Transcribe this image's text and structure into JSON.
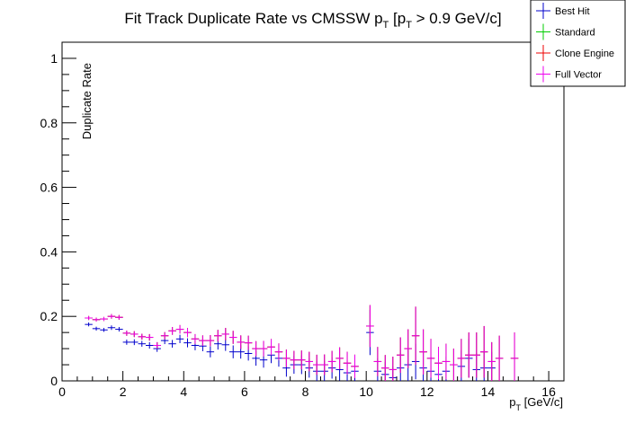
{
  "chart_data": {
    "type": "scatter",
    "title": "Fit Track Duplicate Rate vs CMSSW p",
    "title_sub1": "T",
    "title_mid": " [p",
    "title_sub2": "T",
    "title_tail": " > 0.9 GeV/c]",
    "xlabel": "p",
    "xlabel_sub": "T",
    "xlabel_unit": " [GeV/c]",
    "ylabel": "Duplicate Rate",
    "xlim": [
      0,
      16.5
    ],
    "ylim": [
      0,
      1.05
    ],
    "x_ticks": [
      "0",
      "2",
      "4",
      "6",
      "8",
      "10",
      "12",
      "14",
      "16"
    ],
    "y_ticks": [
      "0",
      "0.2",
      "0.4",
      "0.6",
      "0.8",
      "1"
    ],
    "legend_position": "top-right",
    "bin_width": 0.25,
    "series": [
      {
        "name": "Best Hit",
        "color": "#0000cc",
        "x": [
          0.875,
          1.125,
          1.375,
          1.625,
          1.875,
          2.125,
          2.375,
          2.625,
          2.875,
          3.125,
          3.375,
          3.625,
          3.875,
          4.125,
          4.375,
          4.625,
          4.875,
          5.125,
          5.375,
          5.625,
          5.875,
          6.125,
          6.375,
          6.625,
          6.875,
          7.125,
          7.375,
          7.625,
          7.875,
          8.125,
          8.375,
          8.625,
          8.875,
          9.125,
          9.375,
          9.625,
          10.125,
          10.375,
          10.625,
          10.875,
          11.125,
          11.375,
          11.625,
          11.875,
          12.125,
          12.375,
          12.625,
          13.125,
          13.375,
          13.625,
          13.875,
          14.125
        ],
        "y": [
          0.175,
          0.162,
          0.158,
          0.165,
          0.16,
          0.12,
          0.12,
          0.115,
          0.11,
          0.1,
          0.125,
          0.115,
          0.13,
          0.118,
          0.11,
          0.108,
          0.09,
          0.115,
          0.112,
          0.09,
          0.09,
          0.085,
          0.07,
          0.065,
          0.08,
          0.07,
          0.04,
          0.05,
          0.05,
          0.04,
          0.03,
          0.03,
          0.04,
          0.035,
          0.025,
          0.03,
          0.15,
          0.03,
          0.02,
          0.01,
          0.04,
          0.05,
          0.06,
          0.04,
          0.03,
          0.02,
          0.03,
          0.045,
          0.07,
          0.035,
          0.04,
          0.04
        ],
        "err": [
          0.006,
          0.006,
          0.006,
          0.007,
          0.007,
          0.008,
          0.009,
          0.009,
          0.01,
          0.01,
          0.011,
          0.012,
          0.013,
          0.014,
          0.015,
          0.016,
          0.017,
          0.018,
          0.019,
          0.02,
          0.021,
          0.022,
          0.023,
          0.024,
          0.025,
          0.026,
          0.027,
          0.028,
          0.029,
          0.03,
          0.031,
          0.032,
          0.033,
          0.034,
          0.035,
          0.036,
          0.07,
          0.04,
          0.038,
          0.035,
          0.045,
          0.05,
          0.055,
          0.05,
          0.045,
          0.04,
          0.045,
          0.05,
          0.06,
          0.05,
          0.05,
          0.05
        ]
      },
      {
        "name": "Standard",
        "color": "#00cc00",
        "x": [
          0.875,
          1.125,
          1.375,
          1.625,
          1.875,
          2.125,
          2.375,
          2.625,
          2.875,
          3.125,
          3.375,
          3.625,
          3.875,
          4.125,
          4.375,
          4.625,
          4.875,
          5.125,
          5.375,
          5.625,
          5.875,
          6.125,
          6.375,
          6.625,
          6.875,
          7.125,
          7.375,
          7.625,
          7.875,
          8.125,
          8.375,
          8.625,
          8.875,
          9.125,
          9.375,
          9.625,
          10.125,
          10.375,
          10.625,
          10.875,
          11.125,
          11.375,
          11.625,
          11.875,
          12.125,
          12.375,
          12.625,
          12.875,
          13.125,
          13.375,
          13.625,
          13.875,
          14.125,
          14.375,
          14.875
        ],
        "y": [
          0.195,
          0.19,
          0.192,
          0.2,
          0.197,
          0.148,
          0.145,
          0.137,
          0.135,
          0.11,
          0.14,
          0.155,
          0.16,
          0.15,
          0.13,
          0.125,
          0.125,
          0.14,
          0.145,
          0.135,
          0.12,
          0.118,
          0.1,
          0.1,
          0.105,
          0.09,
          0.07,
          0.065,
          0.065,
          0.06,
          0.05,
          0.05,
          0.06,
          0.07,
          0.055,
          0.045,
          0.17,
          0.06,
          0.04,
          0.035,
          0.08,
          0.1,
          0.14,
          0.09,
          0.07,
          0.055,
          0.06,
          0.05,
          0.07,
          0.08,
          0.08,
          0.09,
          0.06,
          0.07,
          0.07
        ],
        "err": [
          0.006,
          0.006,
          0.006,
          0.007,
          0.007,
          0.008,
          0.009,
          0.009,
          0.01,
          0.01,
          0.011,
          0.012,
          0.013,
          0.014,
          0.015,
          0.016,
          0.017,
          0.018,
          0.019,
          0.02,
          0.021,
          0.022,
          0.023,
          0.024,
          0.025,
          0.026,
          0.027,
          0.028,
          0.029,
          0.03,
          0.031,
          0.032,
          0.033,
          0.034,
          0.035,
          0.036,
          0.065,
          0.045,
          0.04,
          0.04,
          0.055,
          0.06,
          0.09,
          0.07,
          0.06,
          0.05,
          0.055,
          0.05,
          0.06,
          0.07,
          0.07,
          0.08,
          0.06,
          0.07,
          0.08
        ]
      },
      {
        "name": "Clone Engine",
        "color": "#ee0000",
        "x": [
          0.875,
          1.125,
          1.375,
          1.625,
          1.875,
          2.125,
          2.375,
          2.625,
          2.875,
          3.125,
          3.375,
          3.625,
          3.875,
          4.125,
          4.375,
          4.625,
          4.875,
          5.125,
          5.375,
          5.625,
          5.875,
          6.125,
          6.375,
          6.625,
          6.875,
          7.125,
          7.375,
          7.625,
          7.875,
          8.125,
          8.375,
          8.625,
          8.875,
          9.125,
          9.375,
          9.625,
          10.125,
          10.375,
          10.625,
          10.875,
          11.125,
          11.375,
          11.625,
          11.875,
          12.125,
          12.375,
          12.625,
          12.875,
          13.125,
          13.375,
          13.625,
          13.875,
          14.125,
          14.375,
          14.875
        ],
        "y": [
          0.195,
          0.19,
          0.192,
          0.2,
          0.197,
          0.148,
          0.145,
          0.137,
          0.135,
          0.11,
          0.14,
          0.155,
          0.16,
          0.15,
          0.13,
          0.125,
          0.125,
          0.14,
          0.145,
          0.135,
          0.12,
          0.118,
          0.1,
          0.1,
          0.105,
          0.09,
          0.07,
          0.065,
          0.065,
          0.06,
          0.05,
          0.05,
          0.06,
          0.07,
          0.055,
          0.045,
          0.17,
          0.06,
          0.04,
          0.035,
          0.08,
          0.1,
          0.14,
          0.09,
          0.07,
          0.055,
          0.06,
          0.05,
          0.07,
          0.08,
          0.08,
          0.09,
          0.06,
          0.07,
          0.07
        ],
        "err": [
          0.006,
          0.006,
          0.006,
          0.007,
          0.007,
          0.008,
          0.009,
          0.009,
          0.01,
          0.01,
          0.011,
          0.012,
          0.013,
          0.014,
          0.015,
          0.016,
          0.017,
          0.018,
          0.019,
          0.02,
          0.021,
          0.022,
          0.023,
          0.024,
          0.025,
          0.026,
          0.027,
          0.028,
          0.029,
          0.03,
          0.031,
          0.032,
          0.033,
          0.034,
          0.035,
          0.036,
          0.065,
          0.045,
          0.04,
          0.04,
          0.055,
          0.06,
          0.09,
          0.07,
          0.06,
          0.05,
          0.055,
          0.05,
          0.06,
          0.07,
          0.07,
          0.08,
          0.06,
          0.07,
          0.08
        ]
      },
      {
        "name": "Full Vector",
        "color": "#ee00ee",
        "x": [
          0.875,
          1.125,
          1.375,
          1.625,
          1.875,
          2.125,
          2.375,
          2.625,
          2.875,
          3.125,
          3.375,
          3.625,
          3.875,
          4.125,
          4.375,
          4.625,
          4.875,
          5.125,
          5.375,
          5.625,
          5.875,
          6.125,
          6.375,
          6.625,
          6.875,
          7.125,
          7.375,
          7.625,
          7.875,
          8.125,
          8.375,
          8.625,
          8.875,
          9.125,
          9.375,
          9.625,
          10.125,
          10.375,
          10.625,
          10.875,
          11.125,
          11.375,
          11.625,
          11.875,
          12.125,
          12.375,
          12.625,
          12.875,
          13.125,
          13.375,
          13.625,
          13.875,
          14.125,
          14.375,
          14.875
        ],
        "y": [
          0.195,
          0.19,
          0.192,
          0.2,
          0.197,
          0.148,
          0.145,
          0.137,
          0.135,
          0.11,
          0.14,
          0.155,
          0.16,
          0.15,
          0.13,
          0.125,
          0.125,
          0.14,
          0.145,
          0.135,
          0.12,
          0.118,
          0.1,
          0.1,
          0.105,
          0.09,
          0.07,
          0.065,
          0.065,
          0.06,
          0.05,
          0.05,
          0.06,
          0.07,
          0.055,
          0.045,
          0.17,
          0.06,
          0.04,
          0.035,
          0.08,
          0.1,
          0.14,
          0.09,
          0.07,
          0.055,
          0.06,
          0.05,
          0.07,
          0.08,
          0.08,
          0.09,
          0.06,
          0.07,
          0.07
        ],
        "err": [
          0.006,
          0.006,
          0.006,
          0.007,
          0.007,
          0.008,
          0.009,
          0.009,
          0.01,
          0.01,
          0.011,
          0.012,
          0.013,
          0.014,
          0.015,
          0.016,
          0.017,
          0.018,
          0.019,
          0.02,
          0.021,
          0.022,
          0.023,
          0.024,
          0.025,
          0.026,
          0.027,
          0.028,
          0.029,
          0.03,
          0.031,
          0.032,
          0.033,
          0.034,
          0.035,
          0.036,
          0.065,
          0.045,
          0.04,
          0.04,
          0.055,
          0.06,
          0.09,
          0.07,
          0.06,
          0.05,
          0.055,
          0.05,
          0.06,
          0.07,
          0.07,
          0.08,
          0.06,
          0.07,
          0.08
        ]
      }
    ]
  }
}
